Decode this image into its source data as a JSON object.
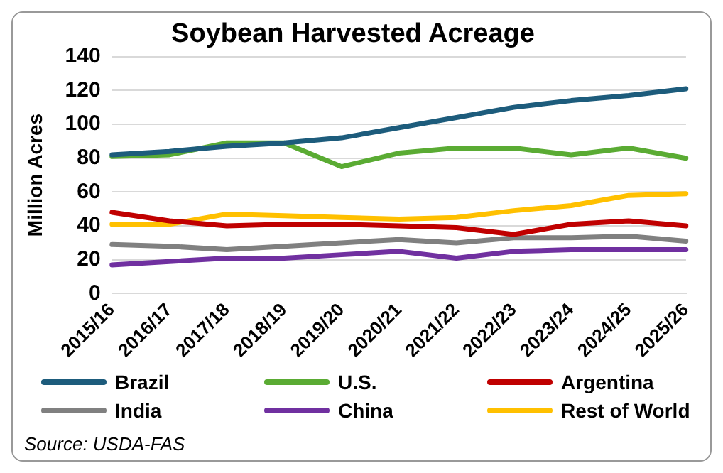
{
  "chart_data": {
    "type": "line",
    "title": "Soybean Harvested Acreage",
    "ylabel": "Million Acres",
    "categories": [
      "2015/16",
      "2016/17",
      "2017/18",
      "2018/19",
      "2019/20",
      "2020/21",
      "2021/22",
      "2022/23",
      "2023/24",
      "2024/25",
      "2025/26"
    ],
    "series": [
      {
        "name": "Brazil",
        "color": "#1d5c7c",
        "values": [
          82,
          84,
          87,
          89,
          92,
          98,
          104,
          110,
          114,
          117,
          121
        ]
      },
      {
        "name": "U.S.",
        "color": "#5aab33",
        "values": [
          81,
          82,
          89,
          89,
          75,
          83,
          86,
          86,
          82,
          86,
          80
        ]
      },
      {
        "name": "Argentina",
        "color": "#c00000",
        "values": [
          48,
          43,
          40,
          41,
          41,
          40,
          39,
          35,
          41,
          43,
          40
        ]
      },
      {
        "name": "India",
        "color": "#808080",
        "values": [
          29,
          28,
          26,
          28,
          30,
          32,
          30,
          33,
          33,
          34,
          31
        ]
      },
      {
        "name": "China",
        "color": "#7030a0",
        "values": [
          17,
          19,
          21,
          21,
          23,
          25,
          21,
          25,
          26,
          26,
          26
        ]
      },
      {
        "name": "Rest of World",
        "color": "#ffc000",
        "values": [
          41,
          41,
          47,
          46,
          45,
          44,
          45,
          49,
          52,
          58,
          59
        ]
      }
    ],
    "ylim": [
      0,
      140
    ],
    "yticks": [
      0,
      20,
      40,
      60,
      80,
      100,
      120,
      140
    ],
    "grid": "y",
    "legend": "bottom",
    "marker": "none",
    "line_style": "solid",
    "annotations": [
      "Source: USDA-FAS"
    ]
  }
}
